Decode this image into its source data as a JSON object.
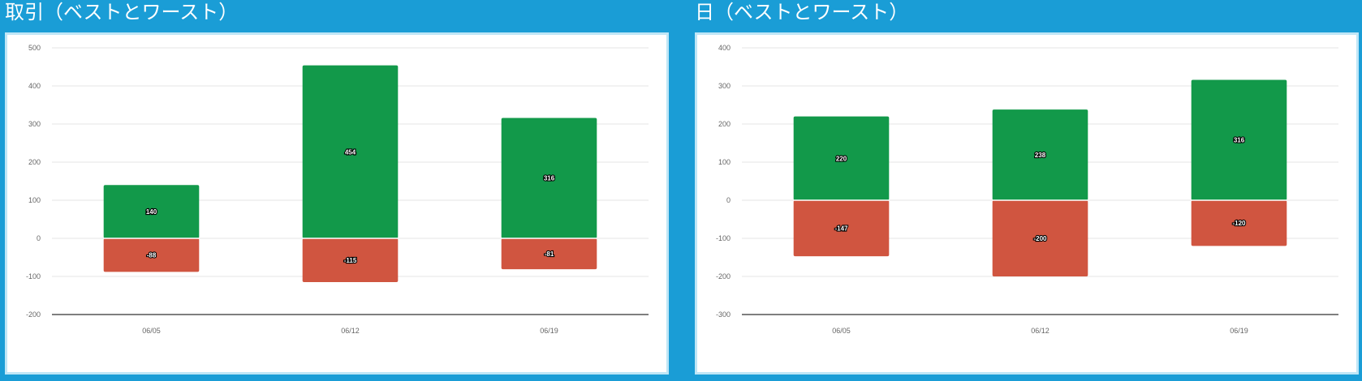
{
  "colors": {
    "page_background": "#1a9dd6",
    "best": "#12994a",
    "worst": "#d05540",
    "axis_baseline": "#333333",
    "gridline": "#e5e5e5"
  },
  "chart_data": [
    {
      "type": "bar",
      "stacked": true,
      "title": "取引（ベストとワースト）",
      "categories": [
        "06/05",
        "06/12",
        "06/19"
      ],
      "series": [
        {
          "values": [
            140,
            454,
            316
          ],
          "labels": [
            "140",
            "454",
            "316"
          ],
          "color": "#12994a"
        },
        {
          "values": [
            -88,
            -115,
            -81
          ],
          "labels": [
            "-88",
            "-115",
            "-81"
          ],
          "color": "#d05540"
        }
      ],
      "ylim": [
        -200,
        500
      ],
      "yticks": [
        500,
        400,
        300,
        200,
        100,
        0,
        -100,
        -200
      ],
      "grid": true,
      "legend": "none"
    },
    {
      "type": "bar",
      "stacked": true,
      "title": "日（ベストとワースト）",
      "categories": [
        "06/05",
        "06/12",
        "06/19"
      ],
      "series": [
        {
          "values": [
            220,
            238,
            316
          ],
          "labels": [
            "220",
            "238",
            "316"
          ],
          "color": "#12994a"
        },
        {
          "values": [
            -147,
            -200,
            -120
          ],
          "labels": [
            "-147",
            "-200",
            "-120"
          ],
          "color": "#d05540"
        }
      ],
      "ylim": [
        -300,
        400
      ],
      "yticks": [
        400,
        300,
        200,
        100,
        0,
        -100,
        -200,
        -300
      ],
      "grid": true,
      "legend": "none"
    }
  ]
}
